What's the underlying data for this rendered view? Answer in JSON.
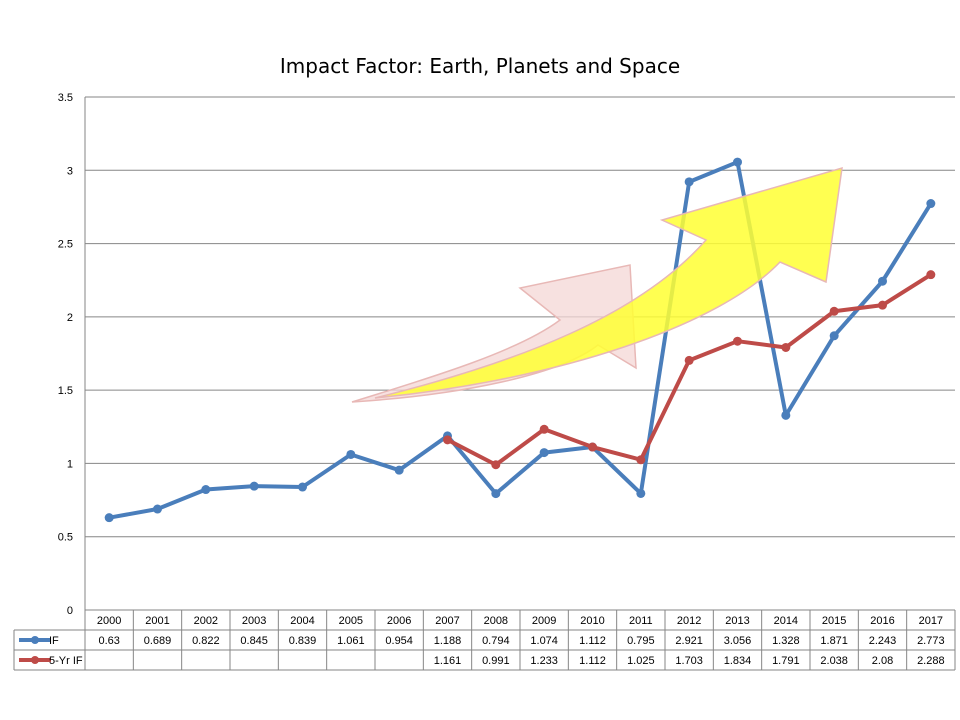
{
  "chart_data": {
    "type": "line",
    "title": "Impact Factor: Earth, Planets and Space",
    "categories": [
      "2000",
      "2001",
      "2002",
      "2003",
      "2004",
      "2005",
      "2006",
      "2007",
      "2008",
      "2009",
      "2010",
      "2011",
      "2012",
      "2013",
      "2014",
      "2015",
      "2016",
      "2017"
    ],
    "ylim": [
      0,
      3.5
    ],
    "yticks": [
      "0",
      "0.5",
      "1",
      "1.5",
      "2",
      "2.5",
      "3",
      "3.5"
    ],
    "grid": true,
    "series": [
      {
        "name": "IF",
        "color": "#4a7ebb",
        "values": [
          0.63,
          0.689,
          0.822,
          0.845,
          0.839,
          1.061,
          0.954,
          1.188,
          0.794,
          1.074,
          1.112,
          0.795,
          2.921,
          3.056,
          1.328,
          1.871,
          2.243,
          2.773
        ],
        "labels": [
          "0.63",
          "0.689",
          "0.822",
          "0.845",
          "0.839",
          "1.061",
          "0.954",
          "1.188",
          "0.794",
          "1.074",
          "1.112",
          "0.795",
          "2.921",
          "3.056",
          "1.328",
          "1.871",
          "2.243",
          "2.773"
        ]
      },
      {
        "name": "5-Yr IF",
        "color": "#be4b48",
        "values": [
          null,
          null,
          null,
          null,
          null,
          null,
          null,
          1.161,
          0.991,
          1.233,
          1.112,
          1.025,
          1.703,
          1.834,
          1.791,
          2.038,
          2.08,
          2.288
        ],
        "labels": [
          "",
          "",
          "",
          "",
          "",
          "",
          "",
          "1.161",
          "0.991",
          "1.233",
          "1.112",
          "1.025",
          "1.703",
          "1.834",
          "1.791",
          "2.038",
          "2.08",
          "2.288"
        ]
      }
    ]
  }
}
